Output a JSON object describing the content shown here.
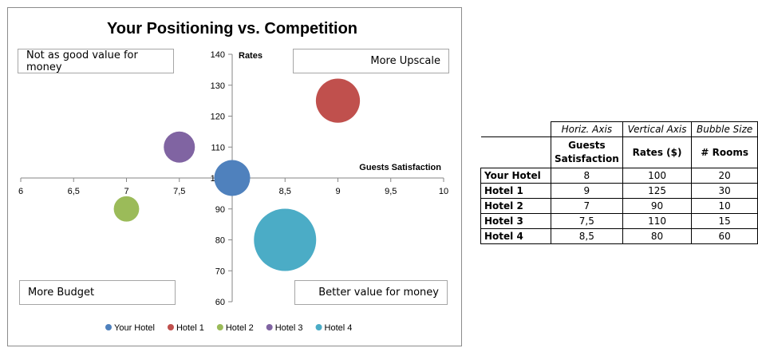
{
  "chart_data": {
    "type": "scatter",
    "title": "Your Positioning vs. Competition",
    "xlabel": "Guests Satisfaction",
    "ylabel": "Rates",
    "xlim": [
      6,
      10
    ],
    "ylim": [
      60,
      140
    ],
    "x_ticks": [
      "6",
      "6,5",
      "7",
      "7,5",
      "8",
      "8,5",
      "9",
      "9,5",
      "10"
    ],
    "y_ticks": [
      "60",
      "70",
      "80",
      "90",
      "100",
      "110",
      "120",
      "130",
      "140"
    ],
    "x_cross_value": 100,
    "y_cross_value": 8,
    "legend_position": "bottom",
    "series": [
      {
        "name": "Your Hotel",
        "x": 8,
        "y": 100,
        "size": 20,
        "color": "#4f81bd"
      },
      {
        "name": "Hotel 1",
        "x": 9,
        "y": 125,
        "size": 30,
        "color": "#c0504d"
      },
      {
        "name": "Hotel 2",
        "x": 7,
        "y": 90,
        "size": 10,
        "color": "#9bbb59"
      },
      {
        "name": "Hotel 3",
        "x": 7.5,
        "y": 110,
        "size": 15,
        "color": "#8064a2"
      },
      {
        "name": "Hotel 4",
        "x": 8.5,
        "y": 80,
        "size": 60,
        "color": "#4bacc6"
      }
    ],
    "quadrant_labels": {
      "top_left": "Not as good value for money",
      "top_right": "More Upscale",
      "bottom_left": "More Budget",
      "bottom_right": "Better value for money"
    }
  },
  "table": {
    "headers_italic": [
      "Horiz. Axis",
      "Vertical Axis",
      "Bubble Size"
    ],
    "headers_bold": [
      "Guests Satisfaction",
      "Rates ($)",
      "# Rooms"
    ],
    "rows": [
      [
        "Your Hotel",
        "8",
        "100",
        "20"
      ],
      [
        "Hotel 1",
        "9",
        "125",
        "30"
      ],
      [
        "Hotel 2",
        "7",
        "90",
        "10"
      ],
      [
        "Hotel 3",
        "7,5",
        "110",
        "15"
      ],
      [
        "Hotel 4",
        "8,5",
        "80",
        "60"
      ]
    ]
  }
}
